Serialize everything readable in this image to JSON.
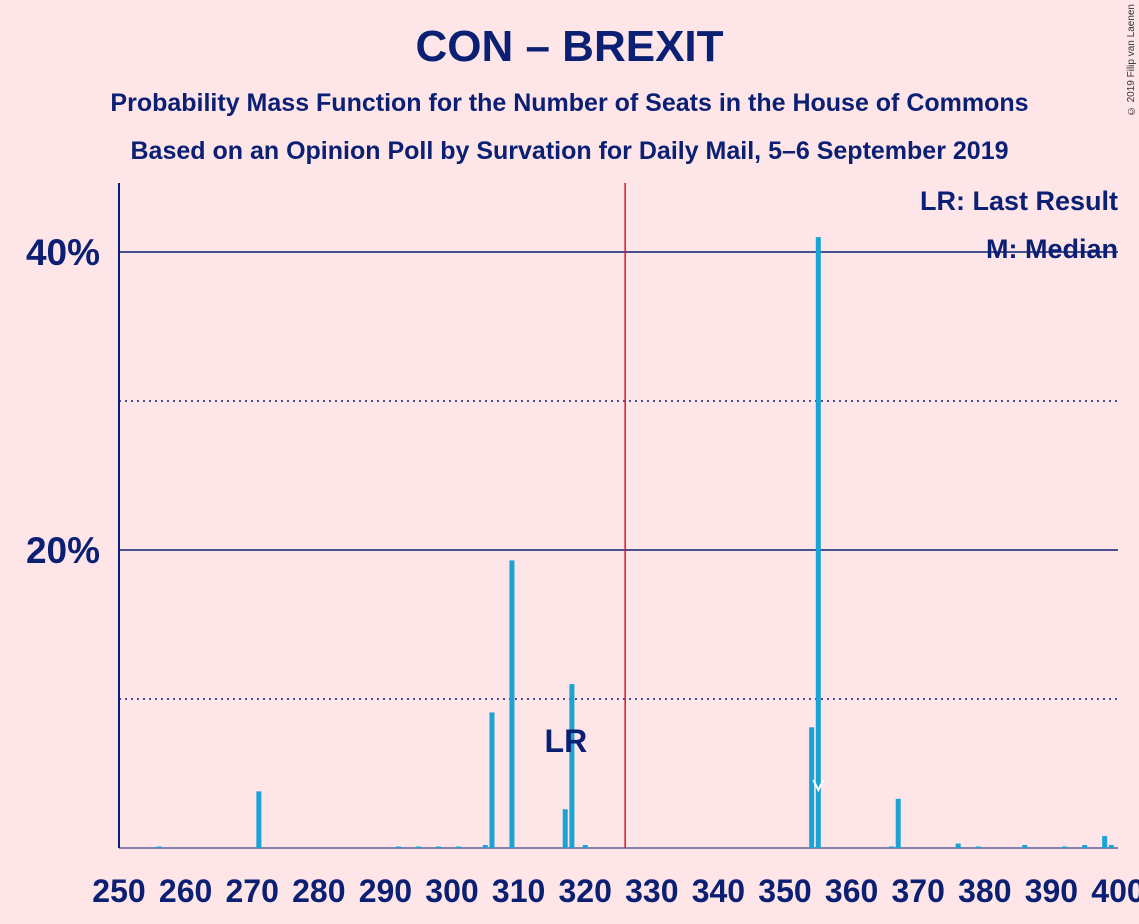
{
  "title": "CON – BREXIT",
  "subtitle1": "Probability Mass Function for the Number of Seats in the House of Commons",
  "subtitle2": "Based on an Opinion Poll by Survation for Daily Mail, 5–6 September 2019",
  "copyright": "© 2019 Filip van Laenen",
  "legend": {
    "last_result": "LR: Last Result",
    "median": "M: Median"
  },
  "annotations": {
    "lr": "LR",
    "median_marker": "M"
  },
  "colors": {
    "bar": "#1aa3d4",
    "majority_line": "#e0152a",
    "axis": "#0c2073",
    "background": "#fde5e8"
  },
  "chart_data": {
    "type": "bar",
    "xlim": [
      250,
      400
    ],
    "ylim": [
      0,
      45
    ],
    "x_ticks": [
      250,
      260,
      270,
      280,
      290,
      300,
      310,
      320,
      330,
      340,
      350,
      360,
      370,
      380,
      390,
      400
    ],
    "y_ticks": [
      {
        "value": 20,
        "label": "20%"
      },
      {
        "value": 40,
        "label": "40%"
      }
    ],
    "dotted_grid": [
      10,
      30
    ],
    "majority_line": 326,
    "last_result": 318,
    "median": 355,
    "series": [
      {
        "x": [
          256,
          271,
          292,
          295,
          298,
          301,
          305,
          306,
          309,
          317,
          318,
          320,
          354,
          355,
          366,
          367,
          376,
          379,
          386,
          392,
          395,
          398,
          399
        ],
        "values": [
          0.1,
          3.8,
          0.1,
          0.1,
          0.1,
          0.1,
          0.2,
          9.1,
          19.3,
          2.6,
          11.0,
          0.2,
          8.1,
          41.0,
          0.1,
          3.3,
          0.3,
          0.1,
          0.2,
          0.1,
          0.2,
          0.8,
          0.2
        ]
      }
    ]
  }
}
